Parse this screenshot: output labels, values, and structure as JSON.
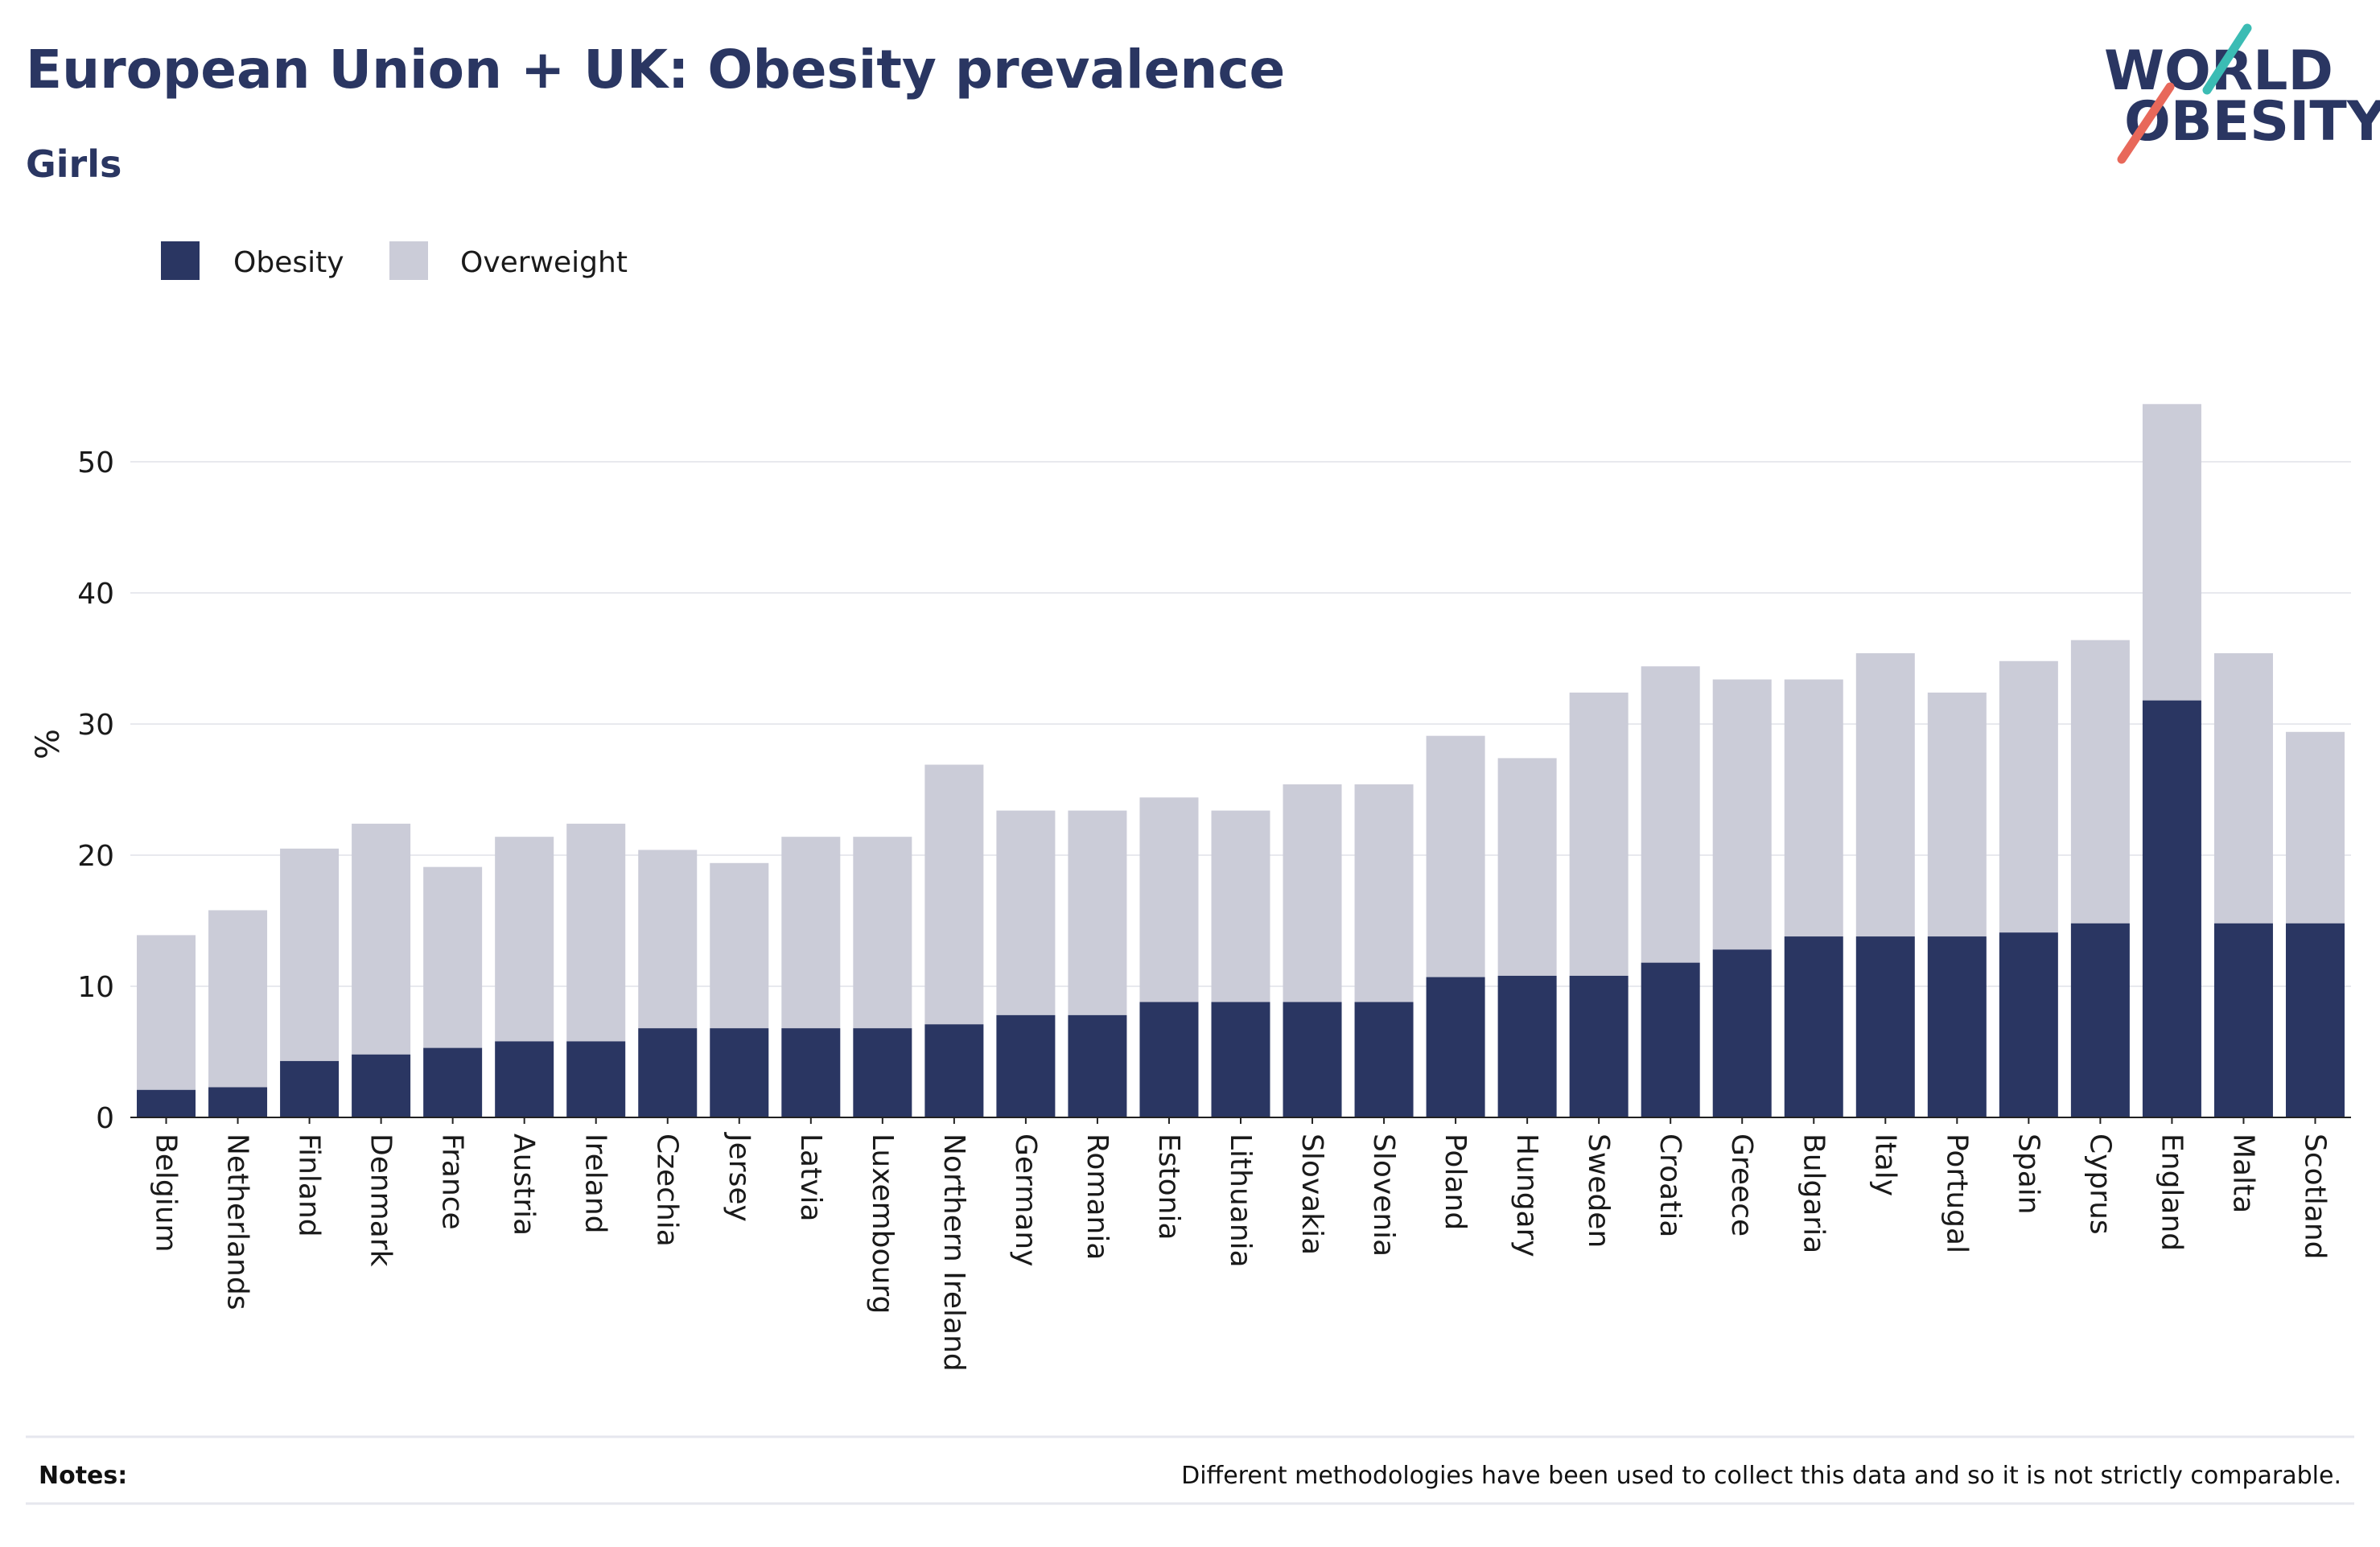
{
  "header": {
    "title": "European Union + UK: Obesity prevalence",
    "subtitle": "Girls"
  },
  "logo": {
    "line1": "WORLD",
    "line2": "OBESITY",
    "colors": {
      "text": "#2a3662",
      "slash_top": "#3bbcb4",
      "slash_bottom": "#e8685a"
    }
  },
  "legend": {
    "items": [
      {
        "label": "Obesity",
        "color": "#2a3662"
      },
      {
        "label": "Overweight",
        "color": "#cbccd8"
      }
    ]
  },
  "notes": {
    "label": "Notes:",
    "text": "Different methodologies have been used to collect this data and so it is not strictly comparable."
  },
  "chart_data": {
    "type": "bar",
    "stacked": true,
    "ylabel": "%",
    "xlabel": "",
    "ylim": [
      0,
      56
    ],
    "yticks": [
      0,
      10,
      20,
      30,
      40,
      50
    ],
    "grid": true,
    "legend_position": "top-left",
    "categories": [
      "Belgium",
      "Netherlands",
      "Finland",
      "Denmark",
      "France",
      "Austria",
      "Ireland",
      "Czechia",
      "Jersey",
      "Latvia",
      "Luxembourg",
      "Northern Ireland",
      "Germany",
      "Romania",
      "Estonia",
      "Lithuania",
      "Slovakia",
      "Slovenia",
      "Poland",
      "Hungary",
      "Sweden",
      "Croatia",
      "Greece",
      "Bulgaria",
      "Italy",
      "Portugal",
      "Spain",
      "Cyprus",
      "England",
      "Malta",
      "Scotland"
    ],
    "series": [
      {
        "name": "Obesity",
        "color": "#2a3662",
        "values": [
          2.1,
          2.3,
          4.3,
          4.8,
          5.3,
          5.8,
          5.8,
          6.8,
          6.8,
          6.8,
          6.8,
          7.1,
          7.8,
          7.8,
          8.8,
          8.8,
          8.8,
          8.8,
          10.7,
          10.8,
          10.8,
          11.8,
          12.8,
          13.8,
          13.8,
          13.8,
          14.1,
          14.8,
          31.8,
          14.8,
          14.8
        ]
      },
      {
        "name": "Overweight",
        "color": "#cbccd8",
        "values": [
          11.8,
          13.5,
          16.2,
          17.6,
          13.8,
          15.6,
          16.6,
          13.6,
          12.6,
          14.6,
          14.6,
          19.8,
          15.6,
          15.6,
          15.6,
          14.6,
          16.6,
          16.6,
          18.4,
          16.6,
          21.6,
          22.6,
          20.6,
          19.6,
          21.6,
          18.6,
          20.7,
          21.6,
          22.6,
          20.6,
          14.6
        ]
      }
    ]
  }
}
